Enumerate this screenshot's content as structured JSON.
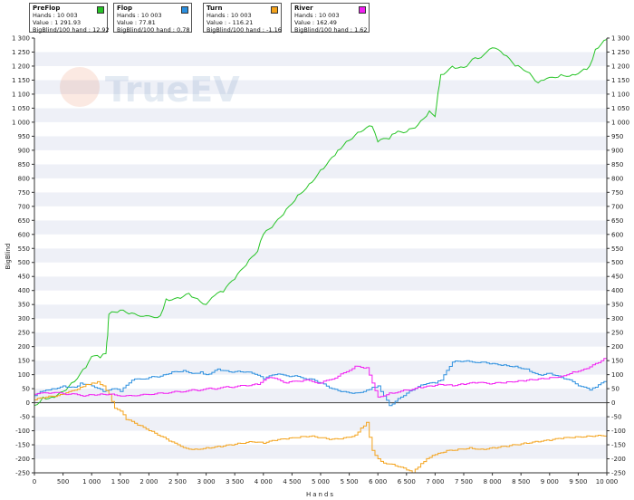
{
  "legend": [
    {
      "title": "PreFlop",
      "hands_label": "Hands :",
      "hands": "10 003",
      "value_label": "Value :",
      "value": "1 291.93",
      "bb_label": "BigBlind/100 hand :",
      "bb": "12.92",
      "color": "#27c427"
    },
    {
      "title": "Flop",
      "hands_label": "Hands :",
      "hands": "10 003",
      "value_label": "Value :",
      "value": "77.81",
      "bb_label": "BigBlind/100 hand :",
      "bb": "0.78",
      "color": "#2b8fdf"
    },
    {
      "title": "Turn",
      "hands_label": "Hands :",
      "hands": "10 003",
      "value_label": "Value :",
      "value": "- 116.21",
      "bb_label": "BigBlind/100 hand :",
      "bb": "-1.16",
      "color": "#f4a31c"
    },
    {
      "title": "River",
      "hands_label": "Hands :",
      "hands": "10 003",
      "value_label": "Value :",
      "value": "162.49",
      "bb_label": "BigBlind/100 hand :",
      "bb": "1.62",
      "color": "#f21ff2"
    }
  ],
  "watermark": "TrueEV",
  "chart_data": {
    "type": "line",
    "xlabel": "Hands",
    "ylabel": "BigBlind",
    "xlim": [
      0,
      10000
    ],
    "ylim": [
      -250,
      1300
    ],
    "grid": "horizontal bands",
    "x_ticks": [
      "0",
      "500",
      "1 000",
      "1 500",
      "2 000",
      "2 500",
      "3 000",
      "3 500",
      "4 000",
      "4 500",
      "5 000",
      "5 500",
      "6 000",
      "6 500",
      "7 000",
      "7 500",
      "8 000",
      "8 500",
      "9 000",
      "9 500",
      "10 000"
    ],
    "y_ticks": [
      "-250",
      "-200",
      "-150",
      "-100",
      "-50",
      "0",
      "50",
      "100",
      "150",
      "200",
      "250",
      "300",
      "350",
      "400",
      "450",
      "500",
      "550",
      "600",
      "650",
      "700",
      "750",
      "800",
      "850",
      "900",
      "950",
      "1 000",
      "1 050",
      "1 100",
      "1 150",
      "1 200",
      "1 250",
      "1 300"
    ],
    "series": [
      {
        "name": "PreFlop",
        "color": "#27c427",
        "x": [
          0,
          150,
          300,
          500,
          700,
          900,
          1000,
          1150,
          1250,
          1280,
          1300,
          1500,
          1700,
          2000,
          2200,
          2300,
          2500,
          2700,
          2900,
          3000,
          3100,
          3300,
          3500,
          3700,
          3900,
          4000,
          4200,
          4400,
          4600,
          4800,
          5000,
          5200,
          5300,
          5500,
          5700,
          5900,
          6000,
          6200,
          6300,
          6500,
          6700,
          6900,
          7000,
          7050,
          7100,
          7300,
          7500,
          7700,
          7800,
          7900,
          8000,
          8200,
          8400,
          8600,
          8800,
          8900,
          9000,
          9200,
          9400,
          9600,
          9700,
          9800,
          10000
        ],
        "y": [
          -10,
          20,
          20,
          40,
          75,
          125,
          165,
          160,
          175,
          240,
          315,
          330,
          320,
          310,
          310,
          370,
          375,
          390,
          360,
          350,
          375,
          395,
          440,
          490,
          540,
          600,
          640,
          690,
          740,
          780,
          830,
          875,
          900,
          935,
          965,
          985,
          930,
          940,
          960,
          965,
          990,
          1040,
          1020,
          1105,
          1170,
          1200,
          1195,
          1230,
          1230,
          1250,
          1265,
          1240,
          1200,
          1180,
          1140,
          1150,
          1160,
          1170,
          1170,
          1190,
          1200,
          1260,
          1295
        ]
      },
      {
        "name": "Flop",
        "color": "#2b8fdf",
        "x": [
          0,
          100,
          200,
          300,
          500,
          700,
          800,
          1000,
          1200,
          1300,
          1400,
          1500,
          1700,
          2000,
          2200,
          2400,
          2600,
          2800,
          2900,
          3000,
          3200,
          3400,
          3600,
          3800,
          4000,
          4200,
          4500,
          4800,
          5000,
          5200,
          5400,
          5600,
          5800,
          5900,
          6000,
          6200,
          6400,
          6600,
          6800,
          7000,
          7100,
          7300,
          7500,
          7800,
          8000,
          8200,
          8400,
          8600,
          8800,
          9000,
          9200,
          9400,
          9500,
          9700,
          9800,
          10000
        ],
        "y": [
          25,
          40,
          45,
          50,
          60,
          55,
          70,
          60,
          40,
          45,
          50,
          40,
          80,
          90,
          95,
          110,
          115,
          105,
          110,
          100,
          120,
          110,
          110,
          105,
          85,
          100,
          95,
          85,
          70,
          50,
          40,
          35,
          45,
          55,
          60,
          -10,
          20,
          45,
          65,
          70,
          80,
          145,
          148,
          145,
          140,
          135,
          130,
          120,
          100,
          105,
          90,
          75,
          60,
          45,
          55,
          80
        ]
      },
      {
        "name": "Turn",
        "color": "#f4a31c",
        "x": [
          0,
          200,
          400,
          500,
          600,
          800,
          900,
          1000,
          1100,
          1200,
          1300,
          1400,
          1500,
          1600,
          1800,
          2000,
          2200,
          2400,
          2500,
          2600,
          2800,
          3000,
          3200,
          3400,
          3600,
          3800,
          4000,
          4200,
          4400,
          4600,
          4800,
          5000,
          5200,
          5400,
          5600,
          5700,
          5800,
          5900,
          6000,
          6100,
          6300,
          6500,
          6600,
          6700,
          6800,
          6900,
          7000,
          7200,
          7400,
          7600,
          7800,
          8000,
          8200,
          8400,
          8600,
          8800,
          9000,
          9200,
          9400,
          9600,
          9800,
          10000
        ],
        "y": [
          10,
          20,
          25,
          30,
          40,
          55,
          65,
          70,
          75,
          60,
          30,
          -20,
          -30,
          -60,
          -80,
          -100,
          -120,
          -140,
          -150,
          -160,
          -165,
          -160,
          -155,
          -150,
          -145,
          -140,
          -145,
          -135,
          -130,
          -125,
          -120,
          -125,
          -130,
          -125,
          -115,
          -90,
          -70,
          -170,
          -200,
          -215,
          -225,
          -240,
          -250,
          -230,
          -210,
          -195,
          -185,
          -170,
          -165,
          -160,
          -165,
          -160,
          -155,
          -150,
          -145,
          -140,
          -135,
          -128,
          -125,
          -122,
          -118,
          -116
        ]
      },
      {
        "name": "River",
        "color": "#f21ff2",
        "x": [
          0,
          300,
          600,
          900,
          1100,
          1300,
          1600,
          1900,
          2200,
          2500,
          2800,
          3100,
          3400,
          3700,
          3900,
          4100,
          4400,
          4700,
          5000,
          5300,
          5600,
          5800,
          6000,
          6200,
          6500,
          6700,
          6900,
          7100,
          7300,
          7500,
          7700,
          8000,
          8200,
          8400,
          8600,
          8800,
          9000,
          9200,
          9400,
          9600,
          9800,
          10000
        ],
        "y": [
          30,
          35,
          30,
          25,
          28,
          30,
          25,
          30,
          35,
          40,
          45,
          50,
          55,
          60,
          65,
          90,
          70,
          80,
          70,
          95,
          130,
          125,
          20,
          35,
          45,
          55,
          60,
          65,
          60,
          65,
          70,
          68,
          70,
          75,
          80,
          85,
          90,
          95,
          110,
          120,
          140,
          162
        ]
      }
    ]
  }
}
